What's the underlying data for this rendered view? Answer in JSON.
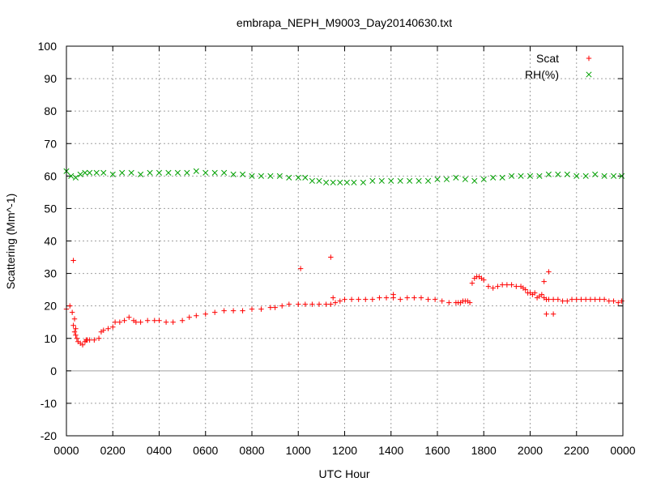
{
  "chart_data": {
    "type": "scatter",
    "title": "embrapa_NEPH_M9003_Day20140630.txt",
    "xlabel": "UTC Hour",
    "ylabel": "Scattering (Mm^-1)",
    "xlim": [
      0,
      24
    ],
    "ylim": [
      -20,
      100
    ],
    "x_tick_values": [
      0,
      2,
      4,
      6,
      8,
      10,
      12,
      14,
      16,
      18,
      20,
      22,
      24
    ],
    "x_tick_labels": [
      "0000",
      "0200",
      "0400",
      "0600",
      "0800",
      "1000",
      "1200",
      "1400",
      "1600",
      "1800",
      "2000",
      "2200",
      "0000"
    ],
    "y_ticks": [
      -20,
      -10,
      0,
      10,
      20,
      30,
      40,
      50,
      60,
      70,
      80,
      90,
      100
    ],
    "grid": true,
    "legend_position": "top-right",
    "series": [
      {
        "name": "Scat",
        "marker": "+",
        "color": "#ff0000",
        "x": [
          0.0,
          0.15,
          0.25,
          0.3,
          0.35,
          0.4,
          0.45,
          0.5,
          0.6,
          0.7,
          0.8,
          0.85,
          0.9,
          1.0,
          1.2,
          1.4,
          1.5,
          1.6,
          1.8,
          2.0,
          2.1,
          2.3,
          2.5,
          2.7,
          2.9,
          3.0,
          3.2,
          3.5,
          3.8,
          4.0,
          4.3,
          4.6,
          5.0,
          5.3,
          5.6,
          6.0,
          6.4,
          6.8,
          7.2,
          7.6,
          8.0,
          8.4,
          8.8,
          9.0,
          9.3,
          9.6,
          10.0,
          10.3,
          10.6,
          10.9,
          11.2,
          11.4,
          11.6,
          11.8,
          12.0,
          12.3,
          12.6,
          12.9,
          13.2,
          13.5,
          13.8,
          14.1,
          14.4,
          14.7,
          15.0,
          15.3,
          15.6,
          15.9,
          16.2,
          16.5,
          16.8,
          16.9,
          17.0,
          17.1,
          17.2,
          17.3,
          17.4,
          17.5,
          17.6,
          17.7,
          17.8,
          17.9,
          18.0,
          18.2,
          18.4,
          18.6,
          18.8,
          19.0,
          19.2,
          19.4,
          19.6,
          19.7,
          19.8,
          19.9,
          20.0,
          20.1,
          20.2,
          20.3,
          20.4,
          20.5,
          20.6,
          20.7,
          20.8,
          21.0,
          21.2,
          21.4,
          21.6,
          21.8,
          22.0,
          22.2,
          22.4,
          22.6,
          22.8,
          23.0,
          23.2,
          23.4,
          23.6,
          23.8,
          23.95,
          0.3,
          0.35,
          0.4,
          10.1,
          11.4,
          20.7,
          20.8,
          20.6,
          21.0,
          11.5,
          14.1
        ],
        "y": [
          19.0,
          20.0,
          18.0,
          14.0,
          12.0,
          11.0,
          10.0,
          9.0,
          8.5,
          8.0,
          9.0,
          9.5,
          9.5,
          9.5,
          9.5,
          10.0,
          12.0,
          12.5,
          13.0,
          13.5,
          15.0,
          15.0,
          15.5,
          16.5,
          15.5,
          15.0,
          15.0,
          15.5,
          15.5,
          15.5,
          15.0,
          15.0,
          15.5,
          16.5,
          17.0,
          17.5,
          18.0,
          18.5,
          18.5,
          18.5,
          19.0,
          19.0,
          19.5,
          19.5,
          20.0,
          20.5,
          20.5,
          20.5,
          20.5,
          20.5,
          20.5,
          20.5,
          21.0,
          21.5,
          22.0,
          22.0,
          22.0,
          22.0,
          22.0,
          22.5,
          22.5,
          22.5,
          22.0,
          22.5,
          22.5,
          22.5,
          22.0,
          22.0,
          21.5,
          21.0,
          21.0,
          21.0,
          21.0,
          21.5,
          21.5,
          21.5,
          21.0,
          27.0,
          28.5,
          29.0,
          29.0,
          28.5,
          28.0,
          26.0,
          25.5,
          26.0,
          26.5,
          26.5,
          26.5,
          26.0,
          26.0,
          25.5,
          25.0,
          24.0,
          24.0,
          23.5,
          24.0,
          22.5,
          23.0,
          23.5,
          22.5,
          22.0,
          22.0,
          22.0,
          22.0,
          21.5,
          21.5,
          22.0,
          22.0,
          22.0,
          22.0,
          22.0,
          22.0,
          22.0,
          22.0,
          21.5,
          21.5,
          21.0,
          21.5,
          34.0,
          16.0,
          13.0,
          31.5,
          35.0,
          17.5,
          30.5,
          27.5,
          17.5,
          22.5,
          23.5
        ]
      },
      {
        "name": "RH(%)",
        "marker": "x",
        "color": "#00a000",
        "x": [
          0.0,
          0.2,
          0.4,
          0.6,
          0.8,
          1.0,
          1.3,
          1.6,
          2.0,
          2.4,
          2.8,
          3.2,
          3.6,
          4.0,
          4.4,
          4.8,
          5.2,
          5.6,
          6.0,
          6.4,
          6.8,
          7.2,
          7.6,
          8.0,
          8.4,
          8.8,
          9.2,
          9.6,
          10.0,
          10.3,
          10.6,
          10.9,
          11.2,
          11.5,
          11.8,
          12.1,
          12.4,
          12.8,
          13.2,
          13.6,
          14.0,
          14.4,
          14.8,
          15.2,
          15.6,
          16.0,
          16.4,
          16.8,
          17.2,
          17.6,
          18.0,
          18.4,
          18.8,
          19.2,
          19.6,
          20.0,
          20.4,
          20.8,
          21.2,
          21.6,
          22.0,
          22.4,
          22.8,
          23.2,
          23.6,
          23.95
        ],
        "y": [
          61.5,
          60.0,
          59.5,
          60.5,
          61.0,
          61.0,
          61.0,
          61.0,
          60.5,
          61.0,
          61.0,
          60.5,
          61.0,
          61.0,
          61.0,
          61.0,
          61.0,
          61.5,
          61.0,
          61.0,
          61.0,
          60.5,
          60.5,
          60.0,
          60.0,
          60.0,
          60.0,
          59.5,
          59.5,
          59.5,
          58.5,
          58.5,
          58.0,
          58.0,
          58.0,
          58.0,
          58.0,
          58.0,
          58.5,
          58.5,
          58.5,
          58.5,
          58.5,
          58.5,
          58.5,
          59.0,
          59.0,
          59.5,
          59.0,
          58.5,
          59.0,
          59.5,
          59.5,
          60.0,
          60.0,
          60.0,
          60.0,
          60.5,
          60.5,
          60.5,
          60.0,
          60.0,
          60.5,
          60.0,
          60.0,
          60.0
        ]
      }
    ]
  }
}
